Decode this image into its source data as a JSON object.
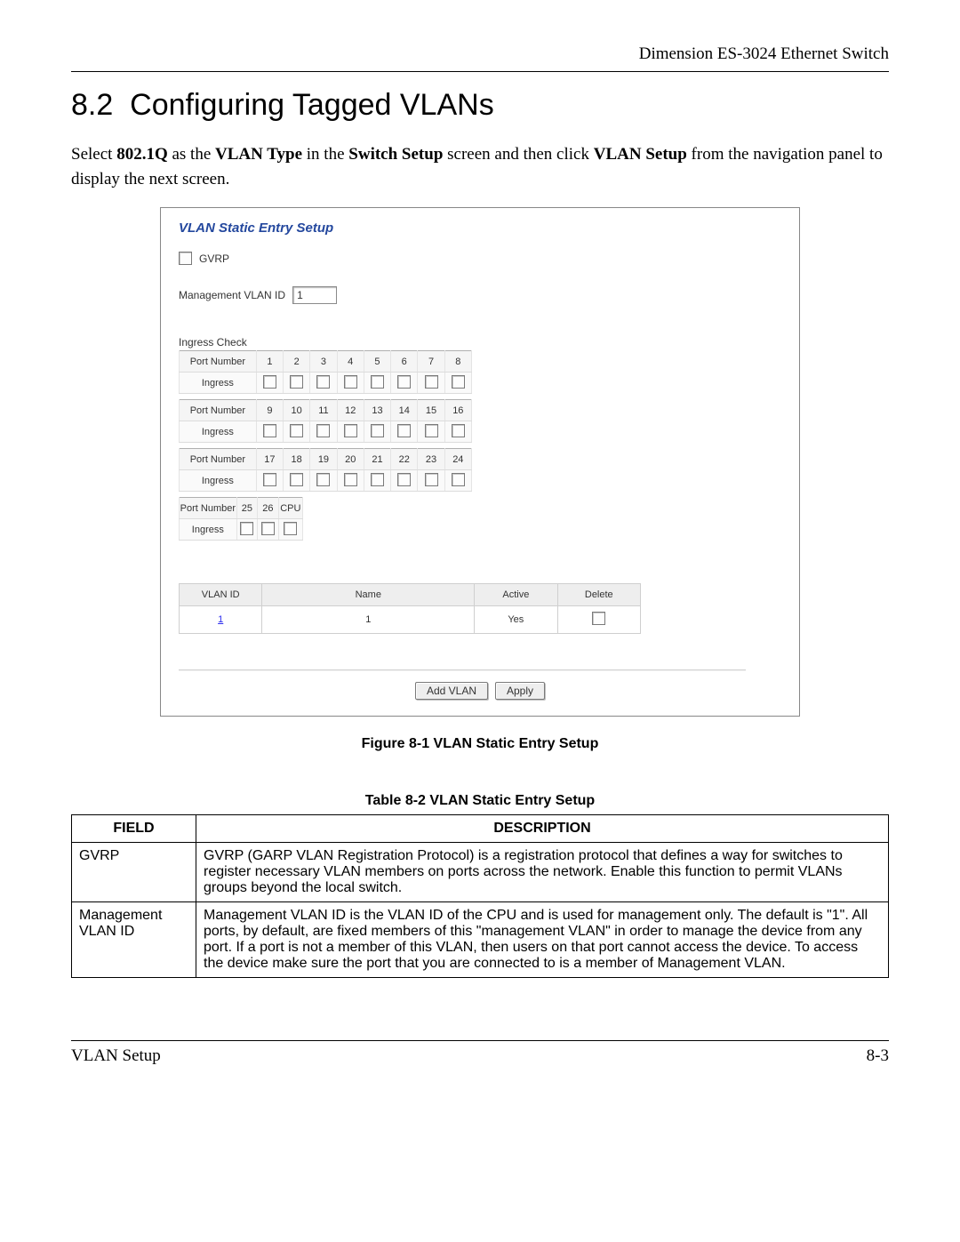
{
  "header": {
    "product": "Dimension ES-3024 Ethernet Switch"
  },
  "section": {
    "number": "8.2",
    "title": "Configuring Tagged VLANs",
    "intro_pre": "Select ",
    "intro_bold1": "802.1Q",
    "intro_mid1": " as the ",
    "intro_bold2": "VLAN Type",
    "intro_mid2": " in the ",
    "intro_bold3": "Switch Setup",
    "intro_mid3": " screen and then click ",
    "intro_bold4": "VLAN Setup",
    "intro_post": " from the navigation panel to display the next screen."
  },
  "screenshot": {
    "title": "VLAN Static Entry Setup",
    "gvrp_label": "GVRP",
    "mgmt_label": "Management VLAN ID",
    "mgmt_value": "1",
    "ingress_heading": "Ingress Check",
    "port_number_label": "Port Number",
    "ingress_label": "Ingress",
    "port_groups": [
      {
        "ports": [
          "1",
          "2",
          "3",
          "4",
          "5",
          "6",
          "7",
          "8"
        ]
      },
      {
        "ports": [
          "9",
          "10",
          "11",
          "12",
          "13",
          "14",
          "15",
          "16"
        ]
      },
      {
        "ports": [
          "17",
          "18",
          "19",
          "20",
          "21",
          "22",
          "23",
          "24"
        ]
      },
      {
        "ports": [
          "25",
          "26",
          "CPU"
        ],
        "narrow": true
      }
    ],
    "vlan_table": {
      "headers": {
        "id": "VLAN ID",
        "name": "Name",
        "active": "Active",
        "delete": "Delete"
      },
      "rows": [
        {
          "id": "1",
          "name": "1",
          "active": "Yes"
        }
      ]
    },
    "buttons": {
      "add": "Add VLAN",
      "apply": "Apply"
    }
  },
  "figure_caption": "Figure 8-1 VLAN Static Entry Setup",
  "table_caption": "Table 8-2 VLAN Static Entry Setup",
  "desc_table": {
    "headers": {
      "field": "FIELD",
      "desc": "DESCRIPTION"
    },
    "rows": [
      {
        "field": "GVRP",
        "desc": "GVRP (GARP VLAN Registration Protocol) is a registration protocol that defines a way for switches to register necessary VLAN members on ports across the network. Enable this function to permit VLANs groups beyond the local switch."
      },
      {
        "field": "Management VLAN ID",
        "desc": "Management VLAN ID is the VLAN ID of the CPU and is used for management only. The default is \"1\". All ports, by default, are fixed members of this \"management VLAN\" in order to manage the device from any port. If a port is not a member of this VLAN, then users on that port cannot access the device. To access the device make sure the port that you are connected to is a member of Management VLAN."
      }
    ]
  },
  "footer": {
    "left": "VLAN Setup",
    "right": "8-3"
  }
}
